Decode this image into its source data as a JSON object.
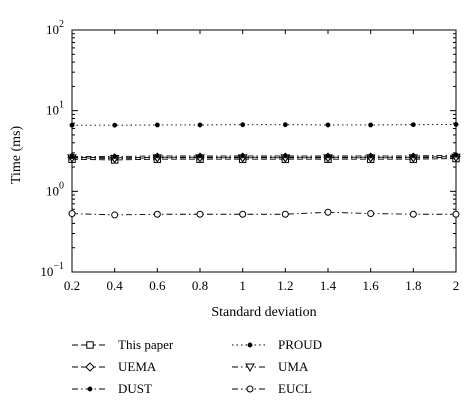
{
  "chart_data": {
    "type": "line",
    "xlabel": "Standard deviation",
    "ylabel": "Time (ms)",
    "yscale": "log",
    "xlim": [
      0.2,
      2
    ],
    "ylim": [
      0.1,
      100
    ],
    "grid": false,
    "legend_position": "bottom",
    "x": [
      0.2,
      0.4,
      0.6,
      0.8,
      1.0,
      1.2,
      1.4,
      1.6,
      1.8,
      2.0
    ],
    "x_tick_labels": [
      "0.2",
      "0.4",
      "0.6",
      "0.8",
      "1",
      "1.2",
      "1.4",
      "1.6",
      "1.8",
      "2"
    ],
    "y_ticks": [
      {
        "value": 0.1,
        "base": "10",
        "exp": "−1"
      },
      {
        "value": 1,
        "base": "10",
        "exp": "0"
      },
      {
        "value": 10,
        "base": "10",
        "exp": "1"
      },
      {
        "value": 100,
        "base": "10",
        "exp": "2"
      }
    ],
    "series": [
      {
        "name": "This paper",
        "marker": "square",
        "dash": "dashed",
        "values": [
          2.5,
          2.45,
          2.5,
          2.5,
          2.5,
          2.5,
          2.5,
          2.5,
          2.5,
          2.55
        ]
      },
      {
        "name": "PROUD",
        "marker": "dot",
        "dash": "dotted",
        "values": [
          6.6,
          6.6,
          6.65,
          6.65,
          6.7,
          6.7,
          6.65,
          6.65,
          6.7,
          6.75
        ]
      },
      {
        "name": "UEMA",
        "marker": "diamond",
        "dash": "dashed",
        "values": [
          2.65,
          2.6,
          2.65,
          2.65,
          2.65,
          2.65,
          2.65,
          2.65,
          2.65,
          2.7
        ]
      },
      {
        "name": "UMA",
        "marker": "triangle-down",
        "dash": "dashdot",
        "values": [
          2.6,
          2.55,
          2.6,
          2.6,
          2.6,
          2.6,
          2.6,
          2.6,
          2.6,
          2.65
        ]
      },
      {
        "name": "DUST",
        "marker": "dot",
        "dash": "dashdot",
        "values": [
          2.7,
          2.7,
          2.75,
          2.75,
          2.75,
          2.75,
          2.75,
          2.75,
          2.75,
          2.8
        ]
      },
      {
        "name": "EUCL",
        "marker": "circle",
        "dash": "dashdot",
        "values": [
          0.53,
          0.51,
          0.52,
          0.52,
          0.52,
          0.52,
          0.55,
          0.53,
          0.52,
          0.52
        ]
      }
    ]
  }
}
